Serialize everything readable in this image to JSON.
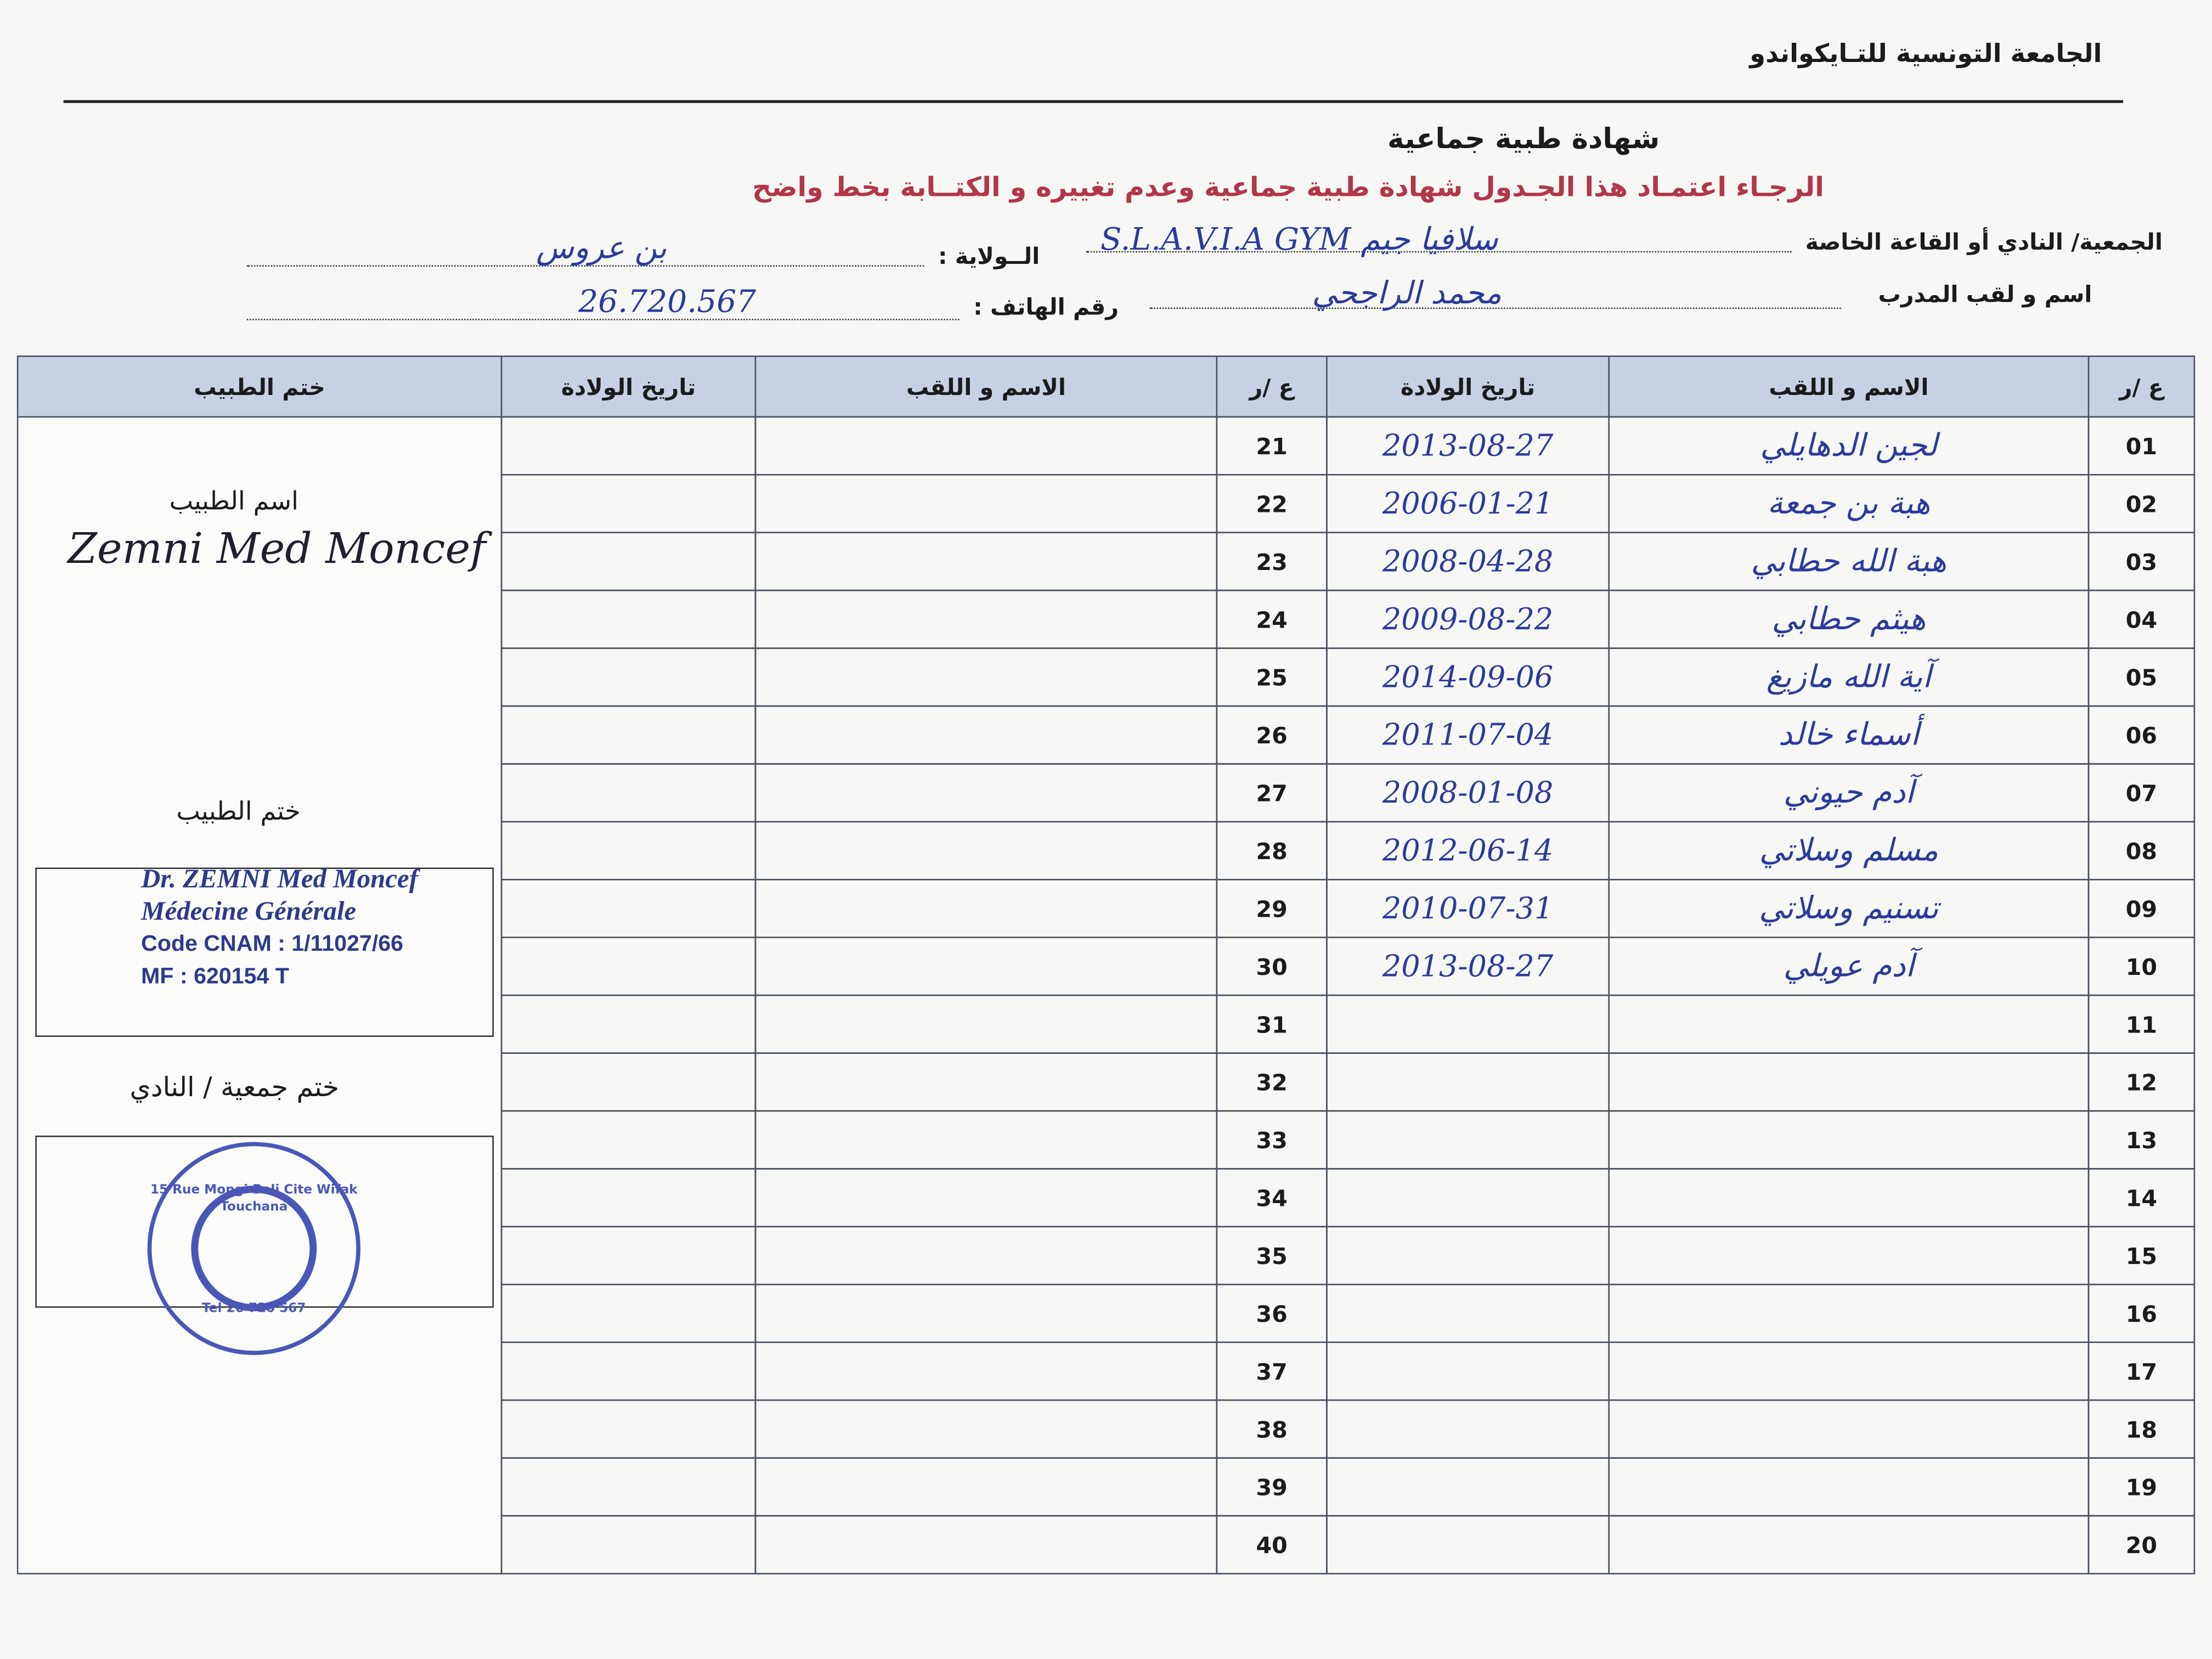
{
  "header": {
    "organization": "الجامعة التونسية للتـايكواندو",
    "title": "شهادة طبية جماعية",
    "instruction": "الرجـاء اعتمـاد هذا الجـدول  شهادة طبية جماعية وعدم تغييره و الكتــابة بخط واضح"
  },
  "form": {
    "club_label": "الجمعية/ النادي أو القاعة الخاصة",
    "club_value": "سلافيا جيم S.L.A.V.I.A GYM",
    "state_label": "الــولاية :",
    "state_value": "بن عروس",
    "trainer_label": "اسم و لقب المدرب",
    "trainer_value": "محمد الراجحي",
    "phone_label": "رقم الهاتف :",
    "phone_value": "26.720.567"
  },
  "table": {
    "headers": {
      "number": "ع /ر",
      "name": "الاسم و اللقب",
      "birth_date": "تاريخ الولادة",
      "doctor_stamp": "ختم الطبيب"
    },
    "right_rows": [
      {
        "number": "01",
        "name": "لجين الدهايلي",
        "birth_date": "2013-08-27"
      },
      {
        "number": "02",
        "name": "هبة بن جمعة",
        "birth_date": "2006-01-21"
      },
      {
        "number": "03",
        "name": "هبة الله حطابي",
        "birth_date": "2008-04-28"
      },
      {
        "number": "04",
        "name": "هيثم حطابي",
        "birth_date": "2009-08-22"
      },
      {
        "number": "05",
        "name": "آية الله مازيغ",
        "birth_date": "2014-09-06"
      },
      {
        "number": "06",
        "name": "أسماء خالد",
        "birth_date": "2011-07-04"
      },
      {
        "number": "07",
        "name": "آدم حيوني",
        "birth_date": "2008-01-08"
      },
      {
        "number": "08",
        "name": "مسلم وسلاتي",
        "birth_date": "2012-06-14"
      },
      {
        "number": "09",
        "name": "تسنيم وسلاتي",
        "birth_date": "2010-07-31"
      },
      {
        "number": "10",
        "name": "آدم عويلي",
        "birth_date": "2013-08-27"
      },
      {
        "number": "11"
      },
      {
        "number": "12"
      },
      {
        "number": "13"
      },
      {
        "number": "14"
      },
      {
        "number": "15"
      },
      {
        "number": "16"
      },
      {
        "number": "17"
      },
      {
        "number": "18"
      },
      {
        "number": "19"
      },
      {
        "number": "20"
      }
    ],
    "left_rows": [
      {
        "number": "21"
      },
      {
        "number": "22"
      },
      {
        "number": "23"
      },
      {
        "number": "24"
      },
      {
        "number": "25"
      },
      {
        "number": "26"
      },
      {
        "number": "27"
      },
      {
        "number": "28"
      },
      {
        "number": "29"
      },
      {
        "number": "30"
      },
      {
        "number": "31"
      },
      {
        "number": "32"
      },
      {
        "number": "33"
      },
      {
        "number": "34"
      },
      {
        "number": "35"
      },
      {
        "number": "36"
      },
      {
        "number": "37"
      },
      {
        "number": "38"
      },
      {
        "number": "39"
      },
      {
        "number": "40"
      }
    ]
  },
  "doctor": {
    "name_label": "اسم الطبيب",
    "signature": "Zemni Med Moncef",
    "stamp_label": "ختم الطبيب",
    "stamp_lines": [
      "Dr. ZEMNI Med Moncef",
      "Médecine Générale",
      "Code CNAM : 1/11027/66",
      "MF : 620154 T"
    ],
    "club_stamp_label": "ختم جمعية / النادي",
    "club_stamp_lines": [
      "15 Rue Mongi Bali Cite Wifak Touchana",
      "Tel 26 720 567"
    ]
  }
}
